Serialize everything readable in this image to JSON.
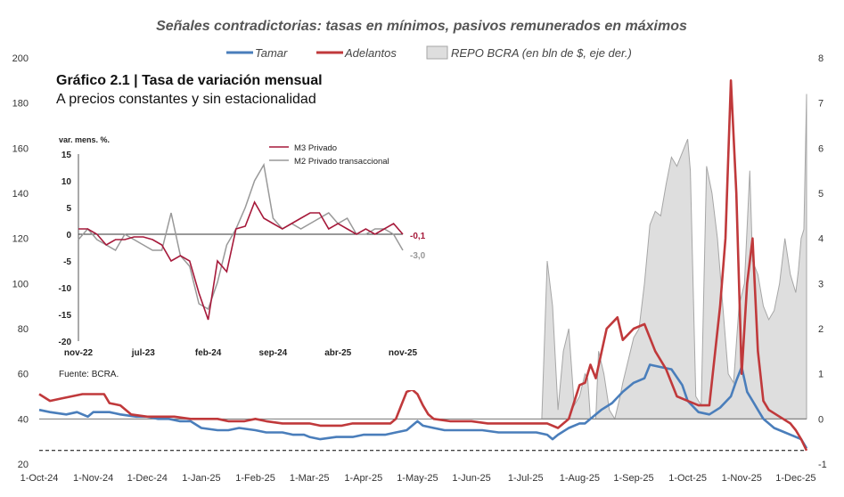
{
  "chart_data": [
    {
      "type": "line",
      "title": "Señales contradictorias: tasas en mínimos, pasivos remunerados en máximos",
      "legend": [
        "Tamar",
        "Adelantos",
        "REPO BCRA (en bln de $, eje der.)"
      ],
      "colors": {
        "tamar": "#4a7ebb",
        "adelantos": "#c0393b",
        "repo_fill": "#dedede",
        "repo_stroke": "#a6a6a6"
      },
      "y_left": {
        "ylim": [
          20,
          200
        ],
        "ticks": [
          "20",
          "40",
          "60",
          "80",
          "100",
          "120",
          "140",
          "160",
          "180",
          "200"
        ]
      },
      "y_right": {
        "ylim": [
          -1,
          8
        ],
        "ticks": [
          "-1",
          "0",
          "1",
          "2",
          "3",
          "4",
          "5",
          "6",
          "7",
          "8"
        ]
      },
      "x_ticks": [
        "1-Oct-24",
        "1-Nov-24",
        "1-Dec-24",
        "1-Jan-25",
        "1-Feb-25",
        "1-Mar-25",
        "1-Apr-25",
        "1-May-25",
        "1-Jun-25",
        "1-Jul-25",
        "1-Aug-25",
        "1-Sep-25",
        "1-Oct-25",
        "1-Nov-25",
        "1-Dec-25"
      ],
      "x_range_months": [
        0,
        14.2
      ],
      "reference_line": 26,
      "series": [
        {
          "name": "Tamar",
          "points": [
            [
              0,
              44
            ],
            [
              0.2,
              43
            ],
            [
              0.5,
              42
            ],
            [
              0.7,
              43
            ],
            [
              0.9,
              41
            ],
            [
              1.0,
              43
            ],
            [
              1.3,
              43
            ],
            [
              1.5,
              42
            ],
            [
              1.8,
              41
            ],
            [
              2.0,
              41
            ],
            [
              2.2,
              40
            ],
            [
              2.4,
              40
            ],
            [
              2.6,
              39
            ],
            [
              2.8,
              39
            ],
            [
              3.0,
              36
            ],
            [
              3.3,
              35
            ],
            [
              3.5,
              35
            ],
            [
              3.7,
              36
            ],
            [
              4.0,
              35
            ],
            [
              4.2,
              34
            ],
            [
              4.5,
              34
            ],
            [
              4.7,
              33
            ],
            [
              4.9,
              33
            ],
            [
              5.0,
              32
            ],
            [
              5.2,
              31
            ],
            [
              5.5,
              32
            ],
            [
              5.8,
              32
            ],
            [
              6.0,
              33
            ],
            [
              6.2,
              33
            ],
            [
              6.4,
              33
            ],
            [
              6.6,
              34
            ],
            [
              6.8,
              35
            ],
            [
              7.0,
              39
            ],
            [
              7.1,
              37
            ],
            [
              7.3,
              36
            ],
            [
              7.5,
              35
            ],
            [
              7.7,
              35
            ],
            [
              8.0,
              35
            ],
            [
              8.2,
              35
            ],
            [
              8.5,
              34
            ],
            [
              8.8,
              34
            ],
            [
              9.0,
              34
            ],
            [
              9.2,
              34
            ],
            [
              9.4,
              33
            ],
            [
              9.5,
              31
            ],
            [
              9.6,
              33
            ],
            [
              9.8,
              36
            ],
            [
              10.0,
              38
            ],
            [
              10.1,
              38
            ],
            [
              10.2,
              40
            ],
            [
              10.4,
              44
            ],
            [
              10.6,
              47
            ],
            [
              10.8,
              52
            ],
            [
              11.0,
              56
            ],
            [
              11.2,
              58
            ],
            [
              11.3,
              64
            ],
            [
              11.5,
              63
            ],
            [
              11.7,
              62
            ],
            [
              11.9,
              55
            ],
            [
              12.0,
              48
            ],
            [
              12.2,
              43
            ],
            [
              12.4,
              42
            ],
            [
              12.6,
              45
            ],
            [
              12.8,
              50
            ],
            [
              12.9,
              57
            ],
            [
              13.0,
              63
            ],
            [
              13.1,
              52
            ],
            [
              13.2,
              48
            ],
            [
              13.3,
              44
            ],
            [
              13.4,
              40
            ],
            [
              13.6,
              36
            ],
            [
              13.8,
              34
            ],
            [
              14.0,
              32
            ],
            [
              14.1,
              31
            ],
            [
              14.2,
              27
            ]
          ]
        },
        {
          "name": "Adelantos",
          "points": [
            [
              0,
              51
            ],
            [
              0.2,
              48
            ],
            [
              0.4,
              49
            ],
            [
              0.6,
              50
            ],
            [
              0.8,
              51
            ],
            [
              1.0,
              51
            ],
            [
              1.2,
              51
            ],
            [
              1.3,
              47
            ],
            [
              1.5,
              46
            ],
            [
              1.7,
              42
            ],
            [
              2.0,
              41
            ],
            [
              2.2,
              41
            ],
            [
              2.5,
              41
            ],
            [
              2.8,
              40
            ],
            [
              3.0,
              40
            ],
            [
              3.3,
              40
            ],
            [
              3.5,
              39
            ],
            [
              3.8,
              39
            ],
            [
              4.0,
              40
            ],
            [
              4.2,
              39
            ],
            [
              4.5,
              38
            ],
            [
              4.8,
              38
            ],
            [
              5.0,
              38
            ],
            [
              5.2,
              37
            ],
            [
              5.4,
              37
            ],
            [
              5.6,
              37
            ],
            [
              5.8,
              38
            ],
            [
              6.0,
              38
            ],
            [
              6.2,
              38
            ],
            [
              6.4,
              38
            ],
            [
              6.5,
              38
            ],
            [
              6.6,
              40
            ],
            [
              6.7,
              46
            ],
            [
              6.8,
              52
            ],
            [
              6.9,
              53
            ],
            [
              7.0,
              51
            ],
            [
              7.1,
              46
            ],
            [
              7.2,
              42
            ],
            [
              7.3,
              40
            ],
            [
              7.6,
              39
            ],
            [
              8.0,
              39
            ],
            [
              8.3,
              38
            ],
            [
              8.6,
              38
            ],
            [
              9.0,
              38
            ],
            [
              9.2,
              38
            ],
            [
              9.4,
              38
            ],
            [
              9.6,
              36
            ],
            [
              9.8,
              40
            ],
            [
              10.0,
              55
            ],
            [
              10.1,
              56
            ],
            [
              10.2,
              64
            ],
            [
              10.3,
              58
            ],
            [
              10.5,
              80
            ],
            [
              10.7,
              85
            ],
            [
              10.8,
              75
            ],
            [
              11.0,
              80
            ],
            [
              11.1,
              81
            ],
            [
              11.2,
              82
            ],
            [
              11.4,
              70
            ],
            [
              11.6,
              62
            ],
            [
              11.8,
              50
            ],
            [
              12.0,
              48
            ],
            [
              12.2,
              46
            ],
            [
              12.4,
              46
            ],
            [
              12.6,
              90
            ],
            [
              12.7,
              120
            ],
            [
              12.8,
              190
            ],
            [
              12.9,
              140
            ],
            [
              13.0,
              60
            ],
            [
              13.1,
              100
            ],
            [
              13.2,
              120
            ],
            [
              13.3,
              70
            ],
            [
              13.4,
              48
            ],
            [
              13.5,
              44
            ],
            [
              13.7,
              41
            ],
            [
              13.9,
              38
            ],
            [
              14.0,
              35
            ],
            [
              14.1,
              31
            ],
            [
              14.2,
              26
            ]
          ]
        },
        {
          "name": "REPO BCRA (en bln de $, eje der.)",
          "axis": "right",
          "points": [
            [
              9.3,
              0
            ],
            [
              9.4,
              3.5
            ],
            [
              9.5,
              2.5
            ],
            [
              9.6,
              0.2
            ],
            [
              9.7,
              1.5
            ],
            [
              9.8,
              2
            ],
            [
              9.9,
              0.3
            ],
            [
              10.0,
              0.5
            ],
            [
              10.1,
              1
            ],
            [
              10.15,
              0.9
            ],
            [
              10.2,
              0
            ],
            [
              10.3,
              0
            ],
            [
              10.35,
              1.5
            ],
            [
              10.45,
              1
            ],
            [
              10.55,
              0.2
            ],
            [
              10.65,
              0
            ],
            [
              10.75,
              0.5
            ],
            [
              10.8,
              0.8
            ],
            [
              10.9,
              1.3
            ],
            [
              11.0,
              1.8
            ],
            [
              11.1,
              2.0
            ],
            [
              11.2,
              3.0
            ],
            [
              11.3,
              4.3
            ],
            [
              11.4,
              4.6
            ],
            [
              11.5,
              4.5
            ],
            [
              11.6,
              5.2
            ],
            [
              11.7,
              5.8
            ],
            [
              11.8,
              5.6
            ],
            [
              11.9,
              5.9
            ],
            [
              12.0,
              6.2
            ],
            [
              12.05,
              5.5
            ],
            [
              12.15,
              0.5
            ],
            [
              12.25,
              0.3
            ],
            [
              12.35,
              5.6
            ],
            [
              12.45,
              5.0
            ],
            [
              12.55,
              4.0
            ],
            [
              12.65,
              2.5
            ],
            [
              12.75,
              1.0
            ],
            [
              12.85,
              0.8
            ],
            [
              12.95,
              2.5
            ],
            [
              13.05,
              3.0
            ],
            [
              13.15,
              5.5
            ],
            [
              13.2,
              3.5
            ],
            [
              13.3,
              3.2
            ],
            [
              13.4,
              2.5
            ],
            [
              13.5,
              2.2
            ],
            [
              13.6,
              2.4
            ],
            [
              13.7,
              3.0
            ],
            [
              13.8,
              4.0
            ],
            [
              13.9,
              3.2
            ],
            [
              14.0,
              2.8
            ],
            [
              14.05,
              3.3
            ],
            [
              14.1,
              4.0
            ],
            [
              14.15,
              4.2
            ],
            [
              14.2,
              7.2
            ]
          ]
        }
      ]
    },
    {
      "type": "line",
      "title": "Gráfico 2.1 | Tasa de variación mensual",
      "subtitle": "A precios constantes y sin estacionalidad",
      "ylabel": "var. mens. %.",
      "source": "Fuente: BCRA.",
      "ylim": [
        -20,
        15
      ],
      "y_ticks": [
        "15",
        "10",
        "5",
        "0",
        "-5",
        "-10",
        "-15",
        "-20"
      ],
      "x_ticks": [
        "nov-22",
        "jul-23",
        "feb-24",
        "sep-24",
        "abr-25",
        "nov-25"
      ],
      "last_values": [
        "-0,1",
        "-3,0"
      ],
      "colors": {
        "m3": "#a6193a",
        "m2": "#999999"
      },
      "series": [
        {
          "name": "M3 Privado",
          "values": [
            1,
            1,
            0,
            -2,
            -1,
            -1,
            -0.5,
            -0.5,
            -1,
            -2,
            -5,
            -4,
            -5,
            -11,
            -16,
            -5,
            -7,
            1,
            1.5,
            6,
            3,
            2,
            1,
            2,
            3,
            4,
            4,
            1,
            2,
            1,
            0,
            1,
            0,
            1,
            2,
            0
          ]
        },
        {
          "name": "M2 Privado transaccional",
          "values": [
            -1,
            1,
            -1,
            -2,
            -3,
            0,
            -1,
            -2,
            -3,
            -3,
            4,
            -4,
            -6,
            -13,
            -14,
            -9,
            -2,
            1,
            5,
            10,
            13,
            3,
            1,
            2,
            1,
            2,
            3,
            4,
            2,
            3,
            0,
            0,
            1,
            1,
            0,
            -3
          ]
        }
      ]
    }
  ]
}
